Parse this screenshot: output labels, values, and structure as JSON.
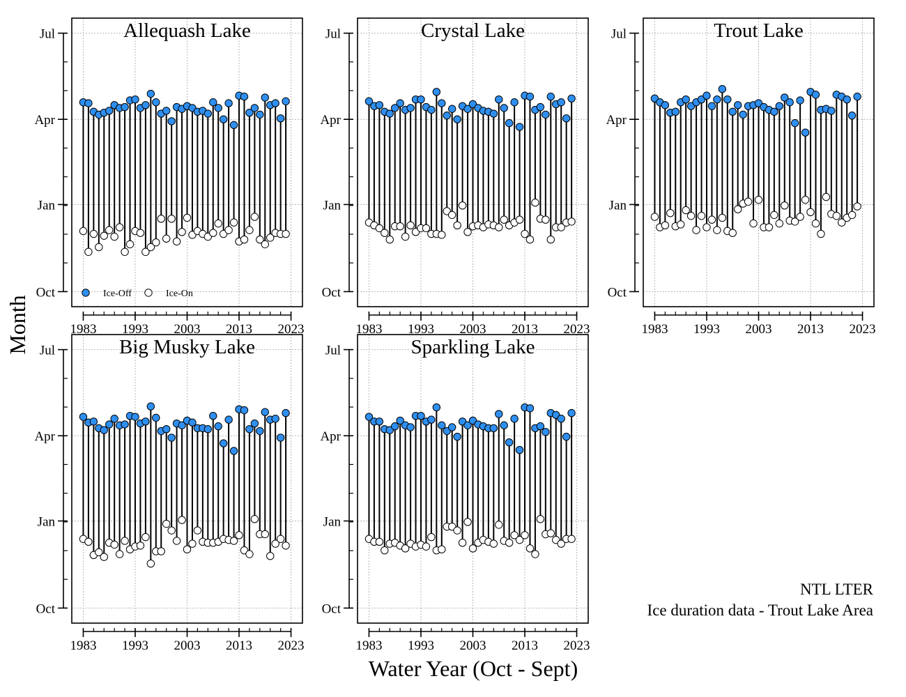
{
  "figure": {
    "y_axis_title": "Month",
    "x_axis_title": "Water Year (Oct - Sept)",
    "note_line1": "NTL LTER",
    "note_line2": "Ice duration data - Trout Lake Area",
    "colors": {
      "ice_off": "#2f8ff0",
      "ice_on": "#ffffff",
      "stem": "#000000",
      "grid": "#b5b5b5"
    }
  },
  "chart_data": {
    "type": "scatter",
    "y_ticks": [
      "Oct",
      "Jan",
      "Apr",
      "Jul"
    ],
    "x_ticks": [
      1983,
      1993,
      2003,
      2013,
      2023
    ],
    "xlim": [
      1982,
      2024
    ],
    "grid": true,
    "legend": {
      "ice_off_label": "Ice-Off",
      "ice_on_label": "Ice-On",
      "location": "bottom-left"
    },
    "years": [
      1983,
      1984,
      1985,
      1986,
      1987,
      1988,
      1989,
      1990,
      1991,
      1992,
      1993,
      1994,
      1995,
      1996,
      1997,
      1998,
      1999,
      2000,
      2001,
      2002,
      2003,
      2004,
      2005,
      2006,
      2007,
      2008,
      2009,
      2010,
      2011,
      2012,
      2013,
      2014,
      2015,
      2016,
      2017,
      2018,
      2019,
      2020,
      2021,
      2022
    ],
    "panels": [
      {
        "title": "Allequash Lake",
        "ice_off_days": [
          200,
          199,
          190,
          187,
          189,
          191,
          197,
          194,
          195,
          202,
          203,
          194,
          197,
          209,
          200,
          188,
          191,
          180,
          195,
          193,
          196,
          194,
          190,
          191,
          188,
          200,
          194,
          182,
          199,
          176,
          207,
          206,
          189,
          194,
          187,
          205,
          197,
          199,
          183,
          201
        ],
        "ice_on_days": [
          64,
          42,
          61,
          47,
          59,
          65,
          58,
          68,
          42,
          50,
          64,
          62,
          42,
          47,
          52,
          77,
          56,
          77,
          53,
          63,
          78,
          60,
          64,
          61,
          58,
          62,
          72,
          61,
          65,
          73,
          53,
          55,
          65,
          79,
          55,
          50,
          57,
          62,
          61,
          61
        ]
      },
      {
        "title": "Crystal Lake",
        "ice_off_days": [
          201,
          196,
          197,
          190,
          188,
          194,
          199,
          192,
          194,
          203,
          203,
          195,
          192,
          211,
          199,
          186,
          193,
          182,
          196,
          193,
          198,
          194,
          191,
          190,
          188,
          203,
          194,
          178,
          200,
          174,
          207,
          206,
          192,
          195,
          187,
          206,
          198,
          200,
          183,
          204
        ],
        "ice_on_days": [
          73,
          70,
          67,
          62,
          55,
          69,
          69,
          58,
          70,
          63,
          67,
          67,
          61,
          61,
          60,
          85,
          81,
          70,
          91,
          63,
          69,
          70,
          68,
          71,
          70,
          68,
          76,
          70,
          73,
          76,
          61,
          55,
          94,
          77,
          76,
          55,
          68,
          68,
          73,
          74
        ]
      },
      {
        "title": "Trout Lake",
        "ice_off_days": [
          204,
          200,
          197,
          189,
          190,
          200,
          203,
          196,
          200,
          203,
          207,
          196,
          203,
          214,
          203,
          190,
          197,
          187,
          196,
          197,
          199,
          195,
          192,
          190,
          196,
          205,
          200,
          178,
          202,
          168,
          211,
          208,
          192,
          193,
          191,
          208,
          206,
          203,
          186,
          206
        ],
        "ice_on_days": [
          79,
          68,
          70,
          83,
          69,
          71,
          86,
          80,
          65,
          80,
          68,
          76,
          65,
          78,
          64,
          62,
          87,
          93,
          95,
          72,
          97,
          68,
          68,
          81,
          72,
          91,
          75,
          74,
          79,
          97,
          84,
          72,
          61,
          100,
          82,
          80,
          73,
          78,
          81,
          90
        ]
      },
      {
        "title": "Big Musky Lake",
        "ice_off_days": [
          202,
          196,
          197,
          190,
          188,
          194,
          200,
          193,
          194,
          203,
          202,
          195,
          197,
          213,
          201,
          187,
          189,
          180,
          195,
          193,
          198,
          196,
          190,
          190,
          189,
          203,
          192,
          174,
          199,
          166,
          210,
          209,
          189,
          195,
          187,
          207,
          199,
          200,
          180,
          206
        ],
        "ice_on_days": [
          73,
          70,
          56,
          59,
          54,
          69,
          67,
          57,
          71,
          62,
          65,
          66,
          75,
          47,
          60,
          60,
          89,
          82,
          71,
          93,
          62,
          68,
          82,
          70,
          69,
          69,
          70,
          73,
          72,
          71,
          77,
          61,
          57,
          94,
          78,
          78,
          55,
          68,
          73,
          66
        ]
      },
      {
        "title": "Sparkling Lake",
        "ice_off_days": [
          202,
          197,
          197,
          189,
          188,
          192,
          198,
          193,
          191,
          203,
          203,
          197,
          199,
          212,
          193,
          187,
          191,
          181,
          197,
          193,
          198,
          194,
          192,
          190,
          190,
          205,
          193,
          175,
          200,
          167,
          212,
          211,
          190,
          192,
          186,
          206,
          204,
          200,
          181,
          206
        ],
        "ice_on_days": [
          73,
          70,
          70,
          61,
          68,
          69,
          66,
          63,
          68,
          65,
          67,
          65,
          75,
          61,
          62,
          86,
          86,
          82,
          69,
          91,
          63,
          69,
          72,
          70,
          68,
          88,
          71,
          69,
          77,
          72,
          77,
          63,
          57,
          94,
          78,
          79,
          72,
          68,
          73,
          73
        ]
      }
    ]
  }
}
